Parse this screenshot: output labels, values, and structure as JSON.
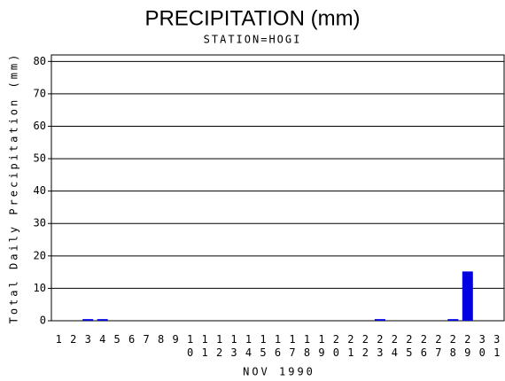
{
  "chart_data": {
    "type": "bar",
    "title": "PRECIPITATION (mm)",
    "subtitle": "STATION=HOGI",
    "x_label": "NOV 1990",
    "y_label": "Total Daily Precipitation (mm)",
    "categories": [
      "1",
      "2",
      "3",
      "4",
      "5",
      "6",
      "7",
      "8",
      "9",
      "10",
      "11",
      "12",
      "13",
      "14",
      "15",
      "16",
      "17",
      "18",
      "19",
      "20",
      "21",
      "22",
      "23",
      "24",
      "25",
      "26",
      "27",
      "28",
      "29",
      "30",
      "31"
    ],
    "values": [
      0,
      0,
      0.5,
      0.5,
      0,
      0,
      0,
      0,
      0,
      0,
      0,
      0,
      0,
      0,
      0,
      0,
      0,
      0,
      0,
      0,
      0,
      0,
      0.5,
      0,
      0,
      0,
      0,
      0.5,
      15.2,
      0,
      0
    ],
    "color": "#0000e0",
    "ylim": [
      0,
      82
    ],
    "yticks": [
      0,
      10,
      20,
      30,
      40,
      50,
      60,
      70,
      80
    ],
    "grid": true
  }
}
